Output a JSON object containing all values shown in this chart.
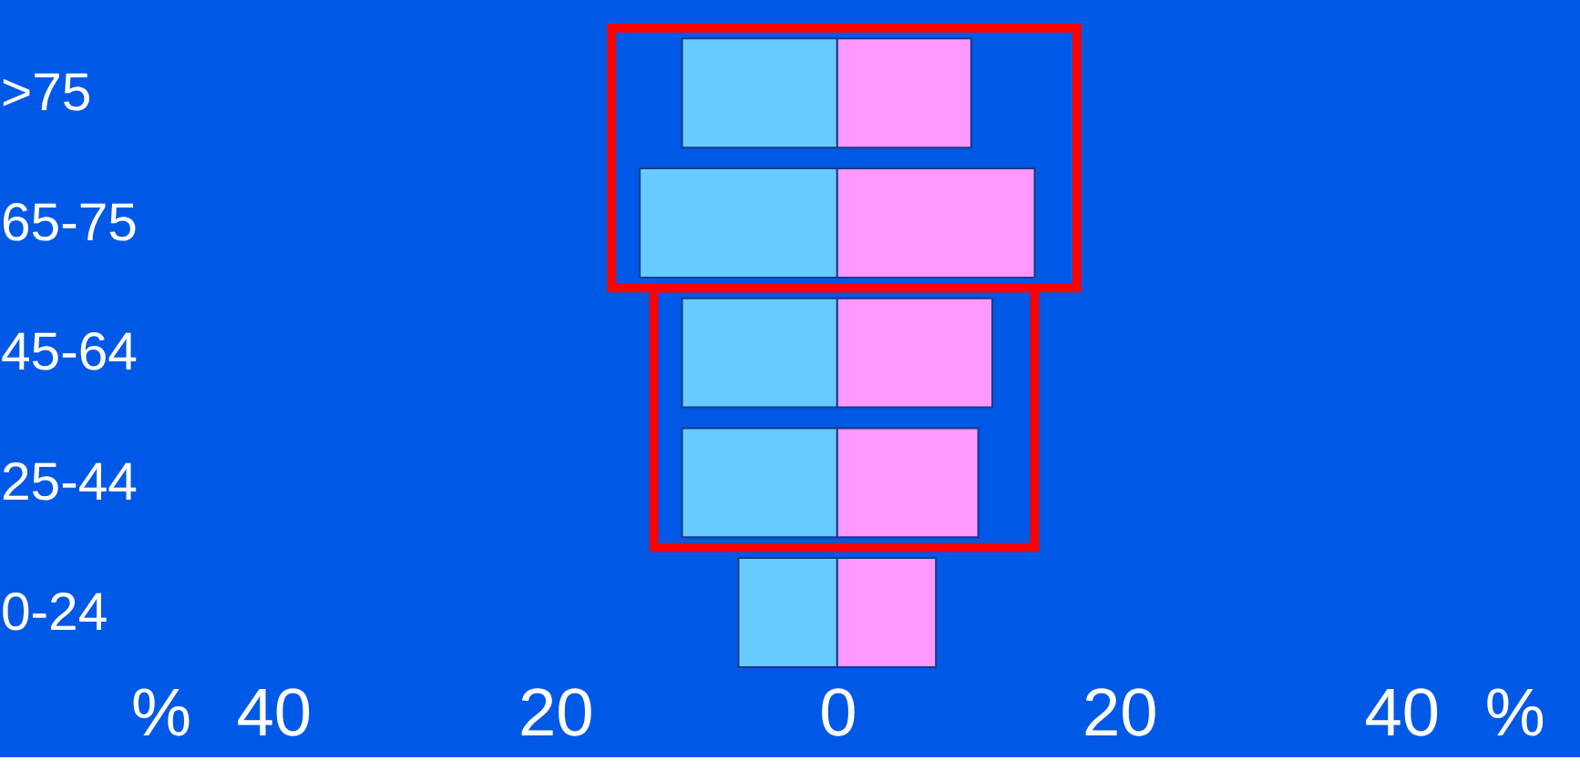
{
  "chart_data": {
    "type": "bar",
    "orientation": "horizontal",
    "stacked": true,
    "categories": [
      ">75",
      "65-75",
      "45-64",
      "25-44",
      "0-24"
    ],
    "series": [
      {
        "color": "#66ccff",
        "values": [
          -11,
          -14,
          -11,
          -11,
          -7
        ]
      },
      {
        "color": "#ff99ff",
        "values": [
          9.5,
          14,
          11,
          10,
          7
        ]
      }
    ],
    "xlim": [
      -48,
      48
    ],
    "xticks": [
      {
        "value": -48,
        "label": "%"
      },
      {
        "value": -40,
        "label": "40"
      },
      {
        "value": -20,
        "label": "20"
      },
      0,
      20,
      {
        "value": 40,
        "label": "40"
      },
      {
        "value": 48,
        "label": "%"
      }
    ],
    "grid": false
  }
}
